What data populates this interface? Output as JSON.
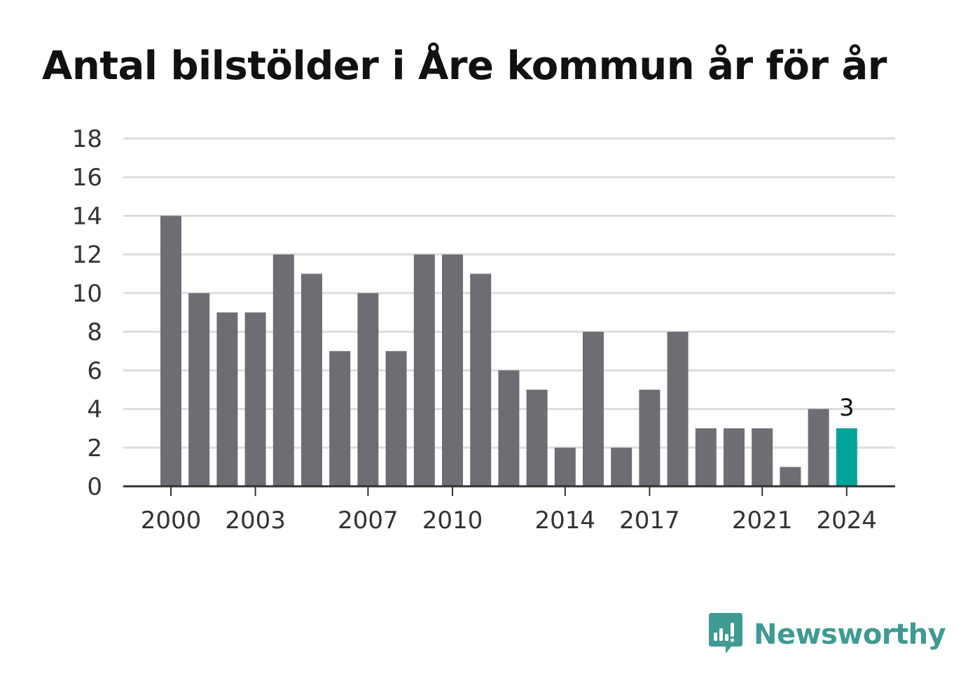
{
  "title": "Antal bilstölder i Åre kommun år för år",
  "brand": {
    "name": "Newsworthy",
    "color": "#3e9a92"
  },
  "colors": {
    "bar": "#6e6d73",
    "highlight": "#00a59a",
    "grid": "#dddddd",
    "axis": "#333333"
  },
  "chart_data": {
    "type": "bar",
    "title": "Antal bilstölder i Åre kommun år för år",
    "xlabel": "",
    "ylabel": "",
    "ylim": [
      0,
      18
    ],
    "yticks": [
      0,
      2,
      4,
      6,
      8,
      10,
      12,
      14,
      16,
      18
    ],
    "xtick_labels": [
      "2000",
      "2003",
      "2007",
      "2010",
      "2014",
      "2017",
      "2021",
      "2024"
    ],
    "categories": [
      "2000",
      "2001",
      "2002",
      "2003",
      "2004",
      "2005",
      "2006",
      "2007",
      "2008",
      "2009",
      "2010",
      "2011",
      "2012",
      "2013",
      "2014",
      "2015",
      "2016",
      "2017",
      "2018",
      "2019",
      "2020",
      "2021",
      "2022",
      "2023",
      "2024"
    ],
    "values": [
      14,
      10,
      9,
      9,
      12,
      11,
      7,
      10,
      7,
      12,
      12,
      11,
      6,
      5,
      2,
      8,
      2,
      5,
      8,
      3,
      3,
      3,
      1,
      4,
      3
    ],
    "highlight_index": 24,
    "data_labels": [
      {
        "category": "2024",
        "text": "3"
      }
    ],
    "grid": true
  }
}
